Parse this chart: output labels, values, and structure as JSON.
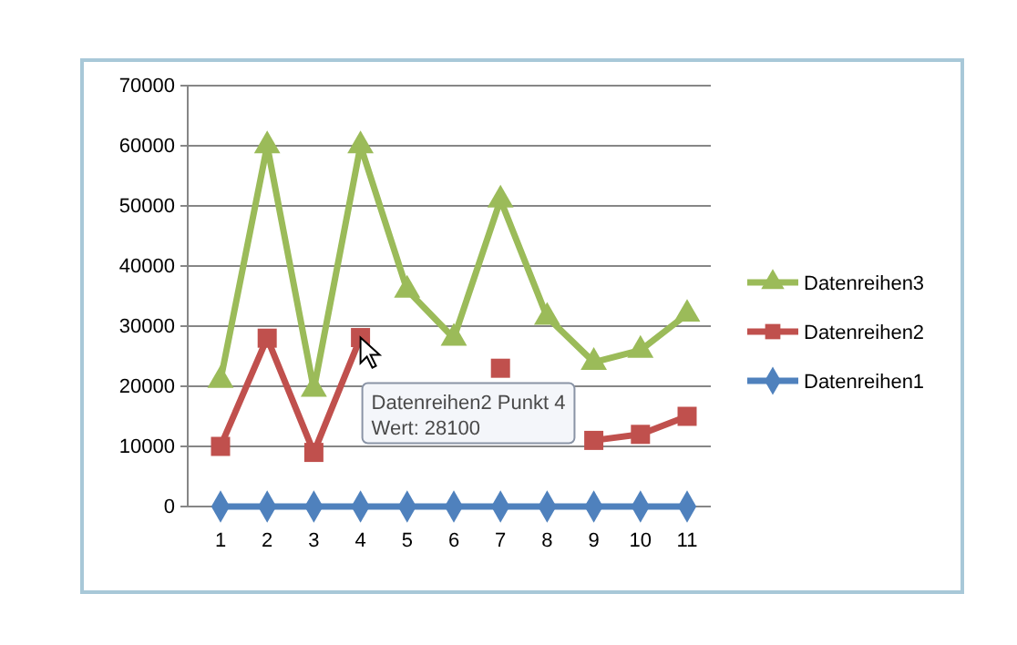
{
  "chart_data": {
    "type": "line",
    "categories": [
      "1",
      "2",
      "3",
      "4",
      "5",
      "6",
      "7",
      "8",
      "9",
      "10",
      "11"
    ],
    "series": [
      {
        "name": "Datenreihen3",
        "color": "#9bbb59",
        "marker": "triangle",
        "values": [
          21000,
          60000,
          19500,
          60000,
          36000,
          28000,
          51000,
          31500,
          24000,
          26000,
          32000
        ]
      },
      {
        "name": "Datenreihen2",
        "color": "#c0504d",
        "marker": "square",
        "values": [
          10000,
          28000,
          9000,
          28100,
          null,
          null,
          23000,
          null,
          11000,
          12000,
          15000
        ]
      },
      {
        "name": "Datenreihen1",
        "color": "#4f81bd",
        "marker": "diamond",
        "values": [
          0,
          0,
          0,
          0,
          0,
          0,
          0,
          0,
          0,
          0,
          0
        ]
      }
    ],
    "ylim": [
      0,
      70000
    ],
    "yticks": [
      0,
      10000,
      20000,
      30000,
      40000,
      50000,
      60000,
      70000
    ],
    "grid": "y",
    "legend": "right",
    "annotations": [
      {
        "text": "Datenreihen2 Punkt 4\nWert: 28100",
        "x": "4",
        "y": 28100
      }
    ]
  }
}
